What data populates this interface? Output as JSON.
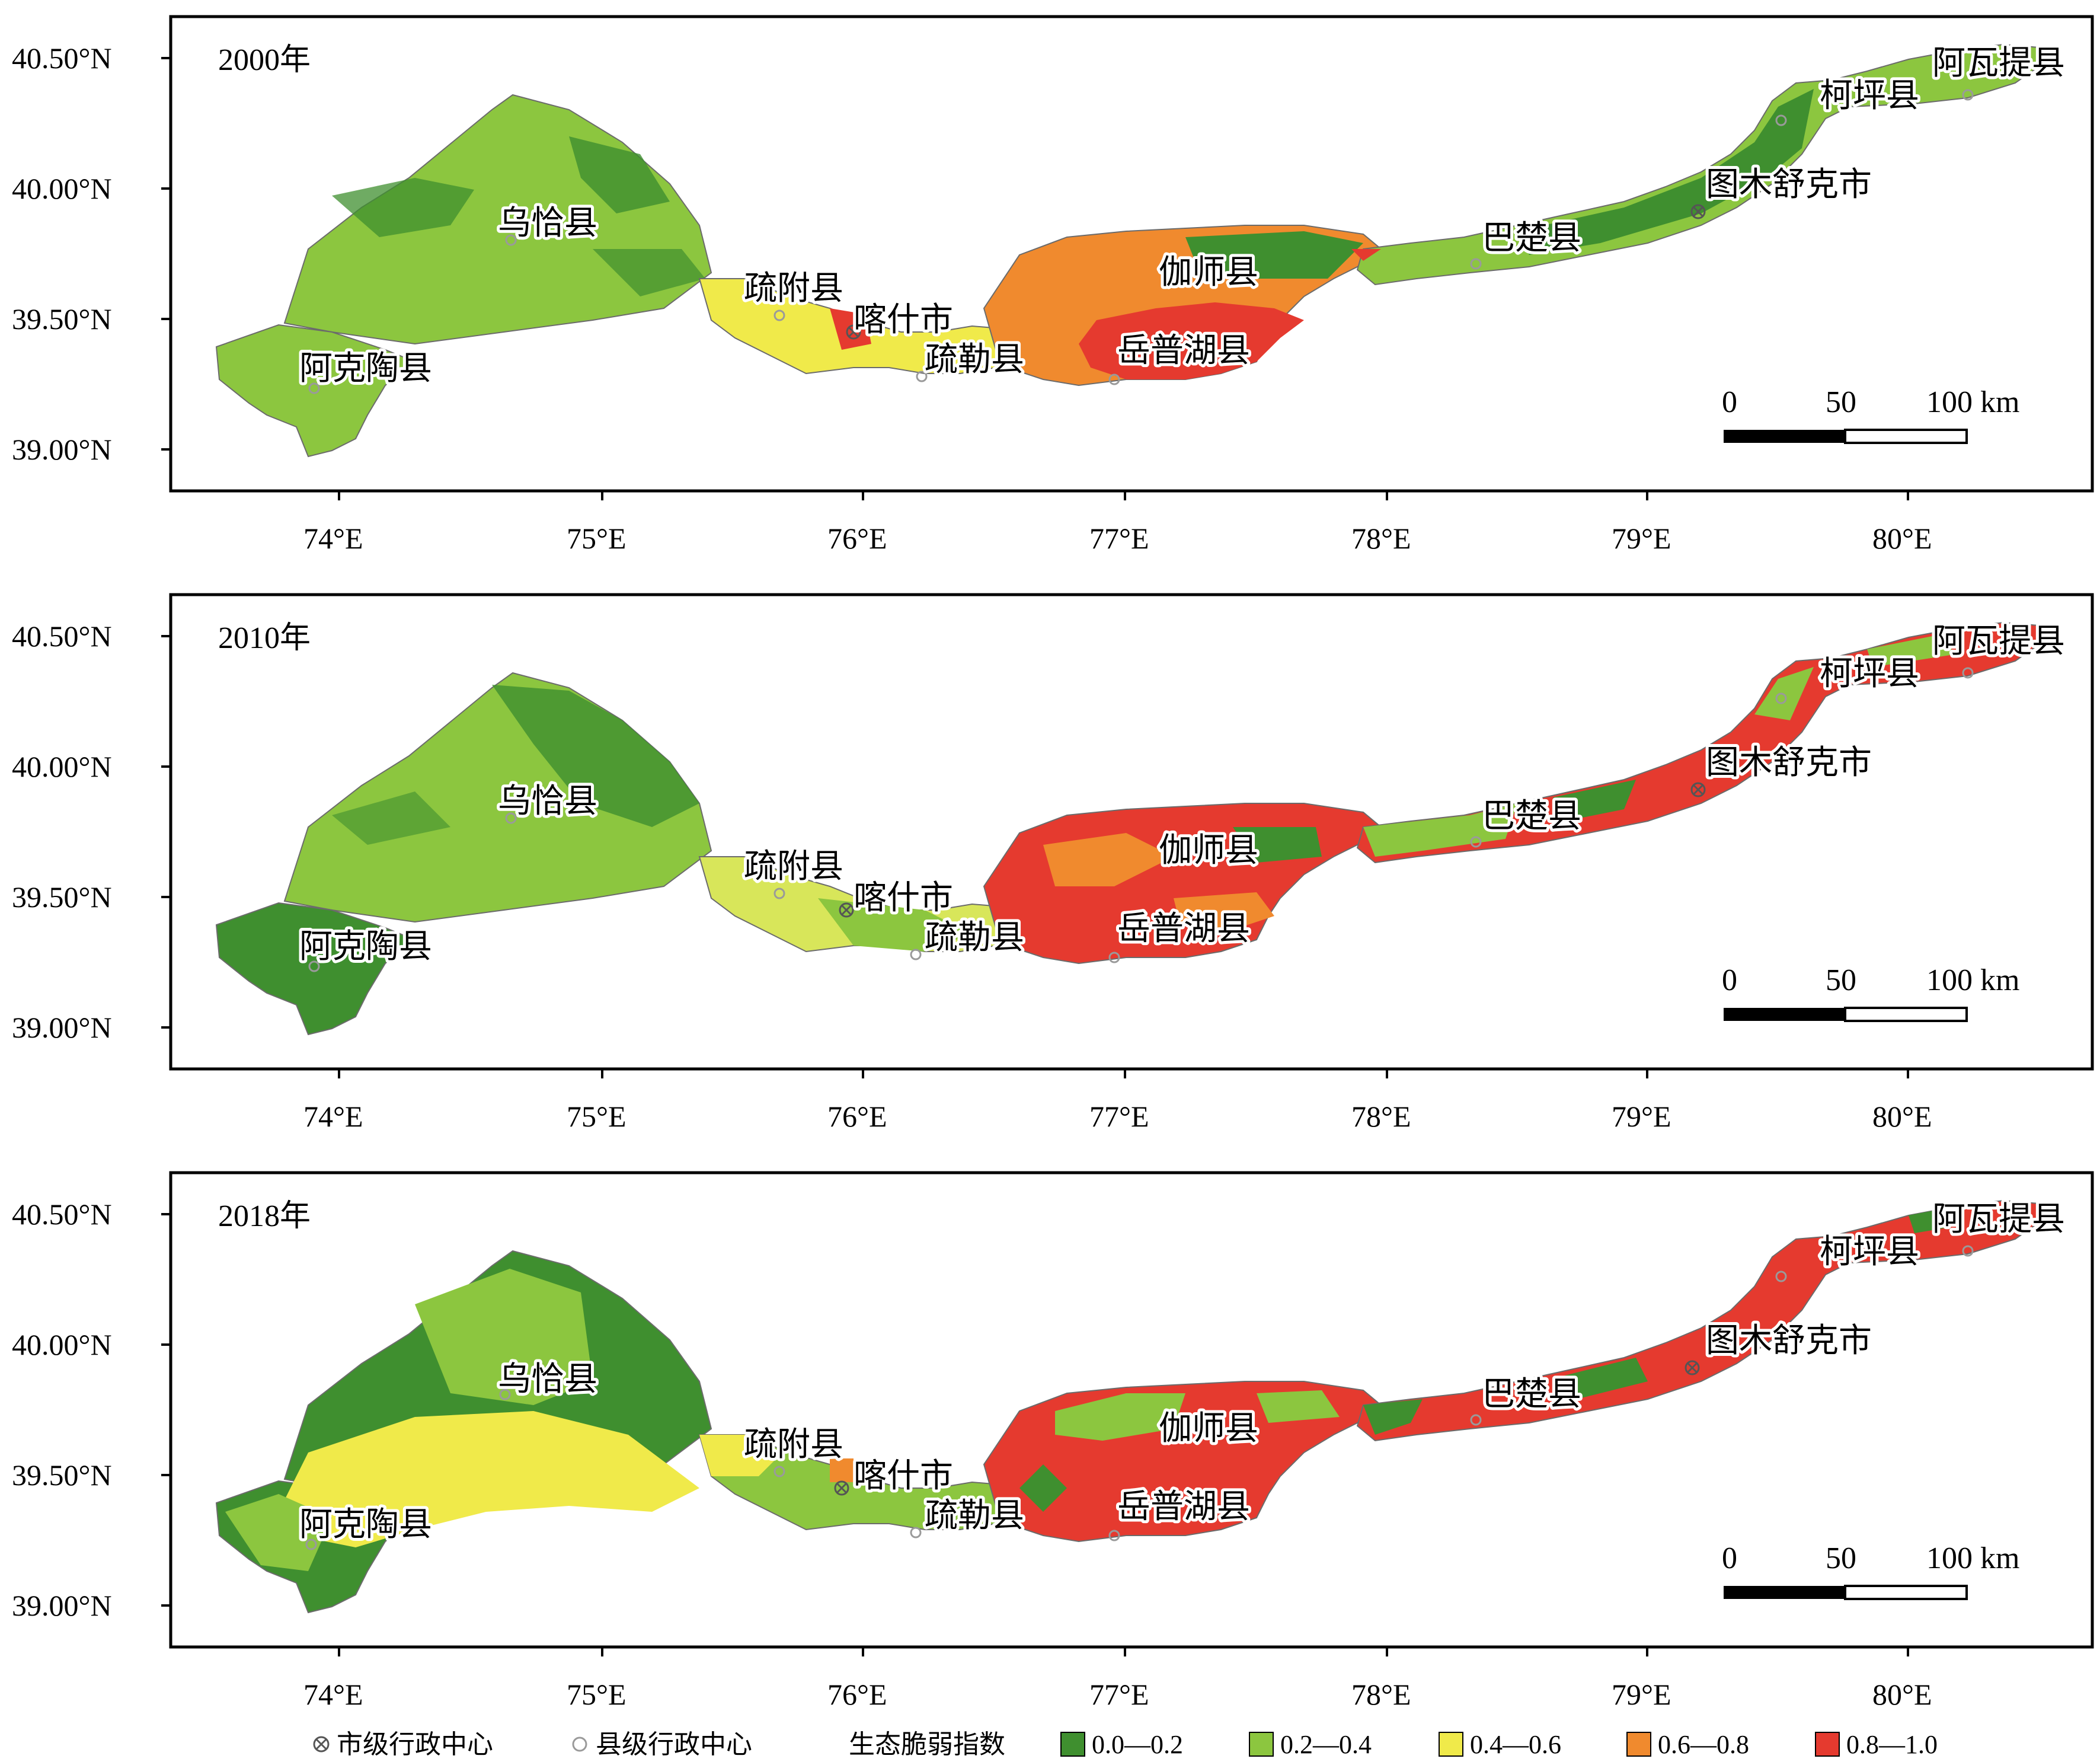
{
  "panels": [
    {
      "year": "2000年",
      "x_ticks": [
        "74°E",
        "75°E",
        "76°E",
        "77°E",
        "78°E",
        "79°E",
        "80°E"
      ],
      "y_ticks": [
        "40.50°N",
        "40.00°N",
        "39.50°N",
        "39.00°N"
      ],
      "places": [
        "乌恰县",
        "阿克陶县",
        "疏附县",
        "喀什市",
        "疏勒县",
        "伽师县",
        "岳普湖县",
        "巴楚县",
        "图木舒克市",
        "柯坪县",
        "阿瓦提县"
      ],
      "scale": {
        "labels": [
          "0",
          "50",
          "100 km"
        ]
      }
    },
    {
      "year": "2010年",
      "x_ticks": [
        "74°E",
        "75°E",
        "76°E",
        "77°E",
        "78°E",
        "79°E",
        "80°E"
      ],
      "y_ticks": [
        "40.50°N",
        "40.00°N",
        "39.50°N",
        "39.00°N"
      ],
      "places": [
        "乌恰县",
        "阿克陶县",
        "疏附县",
        "喀什市",
        "疏勒县",
        "伽师县",
        "岳普湖县",
        "巴楚县",
        "图木舒克市",
        "柯坪县",
        "阿瓦提县"
      ],
      "scale": {
        "labels": [
          "0",
          "50",
          "100 km"
        ]
      }
    },
    {
      "year": "2018年",
      "x_ticks": [
        "74°E",
        "75°E",
        "76°E",
        "77°E",
        "78°E",
        "79°E",
        "80°E"
      ],
      "y_ticks": [
        "40.50°N",
        "40.00°N",
        "39.50°N",
        "39.00°N"
      ],
      "places": [
        "乌恰县",
        "阿克陶县",
        "疏附县",
        "喀什市",
        "疏勒县",
        "伽师县",
        "岳普湖县",
        "巴楚县",
        "图木舒克市",
        "柯坪县",
        "阿瓦提县"
      ],
      "scale": {
        "labels": [
          "0",
          "50",
          "100 km"
        ]
      }
    }
  ],
  "legend": {
    "city_center": "市级行政中心",
    "county_center": "县级行政中心",
    "index_title": "生态脆弱指数",
    "classes": [
      {
        "label": "0.0—0.2",
        "color": "#3f8f2f"
      },
      {
        "label": "0.2—0.4",
        "color": "#8cc63f"
      },
      {
        "label": "0.4—0.6",
        "color": "#f0ea4a"
      },
      {
        "label": "0.6—0.8",
        "color": "#f08a2e"
      },
      {
        "label": "0.8—1.0",
        "color": "#e53a2f"
      }
    ]
  },
  "colors": {
    "class_0_0_2": "#3f8f2f",
    "class_0_2_4": "#8cc63f",
    "class_0_4_6": "#f0ea4a",
    "class_0_6_8": "#f08a2e",
    "class_0_8_1": "#e53a2f",
    "outline": "#000000"
  }
}
